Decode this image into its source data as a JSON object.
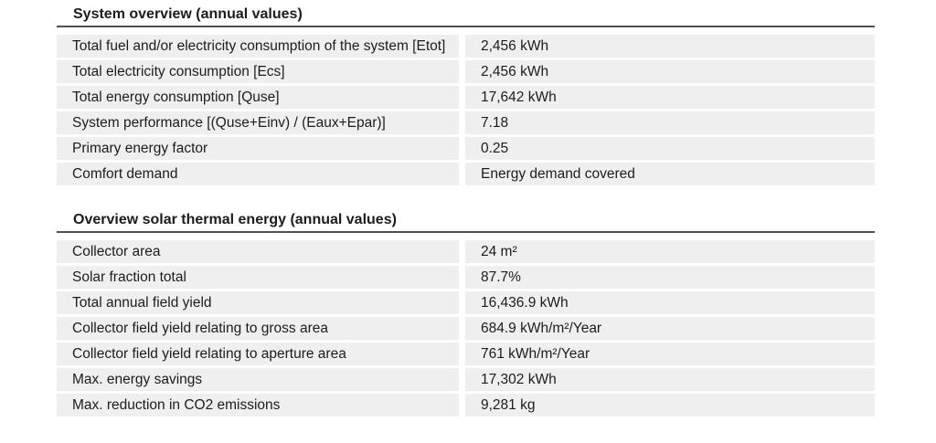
{
  "report": {
    "sections": [
      {
        "title": "System overview (annual values)",
        "rows": [
          {
            "label": "Total fuel and/or electricity consumption of the system [Etot]",
            "value": "2,456 kWh"
          },
          {
            "label": "Total electricity consumption [Ecs]",
            "value": "2,456 kWh"
          },
          {
            "label": "Total energy consumption [Quse]",
            "value": "17,642 kWh"
          },
          {
            "label": "System performance [(Quse+Einv) / (Eaux+Epar)]",
            "value": "7.18"
          },
          {
            "label": "Primary energy factor",
            "value": "0.25"
          },
          {
            "label": "Comfort demand",
            "value": "Energy demand covered"
          }
        ]
      },
      {
        "title": "Overview solar thermal energy (annual values)",
        "rows": [
          {
            "label": "Collector area",
            "value": "24 m²"
          },
          {
            "label": "Solar fraction total",
            "value": "87.7%"
          },
          {
            "label": "Total annual field yield",
            "value": "16,436.9 kWh"
          },
          {
            "label": "Collector field yield relating to gross area",
            "value": "684.9 kWh/m²/Year"
          },
          {
            "label": "Collector field yield relating to aperture area",
            "value": "761 kWh/m²/Year"
          },
          {
            "label": "Max. energy savings",
            "value": "17,302 kWh"
          },
          {
            "label": "Max. reduction in CO2 emissions",
            "value": "9,281 kg"
          }
        ]
      }
    ]
  },
  "colors": {
    "row_background": "#efefef",
    "rule": "#515151",
    "text": "#1c1c1c",
    "page_background": "#ffffff"
  }
}
